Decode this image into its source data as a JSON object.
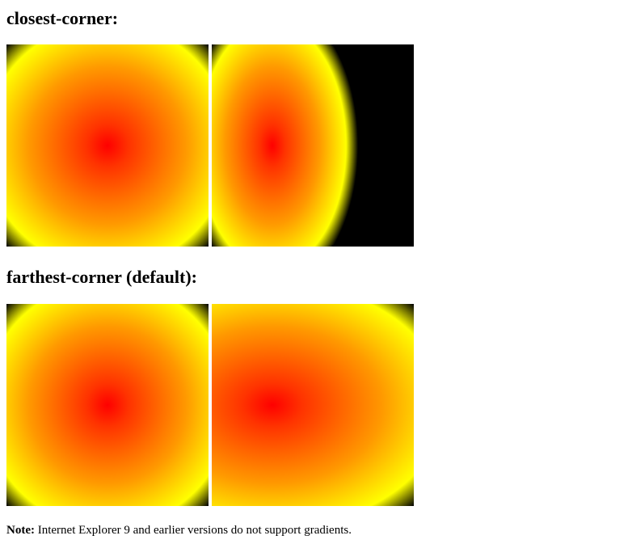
{
  "sections": [
    {
      "heading": "closest-corner:"
    },
    {
      "heading": "farthest-corner (default):"
    }
  ],
  "gradient_colors": [
    "#ff0000",
    "#ffff00",
    "#000000"
  ],
  "note": {
    "label": "Note:",
    "text": " Internet Explorer 9 and earlier versions do not support gradients."
  }
}
